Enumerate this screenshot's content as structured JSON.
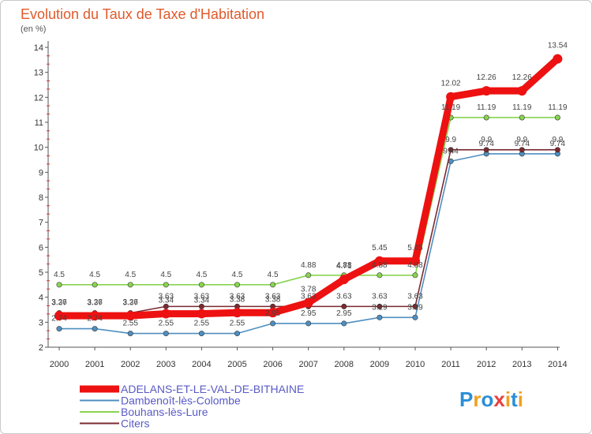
{
  "chart_data": {
    "type": "line",
    "title": "Evolution du Taux de Taxe d'Habitation",
    "subtitle": "(en %)",
    "x": [
      "2000",
      "2001",
      "2002",
      "2003",
      "2004",
      "2005",
      "2006",
      "2007",
      "2008",
      "2009",
      "2010",
      "2011",
      "2012",
      "2013",
      "2014"
    ],
    "ylim": [
      2,
      14
    ],
    "yticks": [
      2,
      3,
      4,
      5,
      6,
      7,
      8,
      9,
      10,
      11,
      12,
      13,
      14
    ],
    "grid": false,
    "legend_position": "bottom-left",
    "series": [
      {
        "name": "ADELANS-ET-LE-VAL-DE-BITHAINE",
        "color": "#ee1111",
        "values": [
          3.26,
          3.26,
          3.26,
          3.34,
          3.34,
          3.38,
          3.38,
          3.78,
          4.71,
          5.45,
          5.45,
          12.02,
          12.26,
          12.26,
          13.54
        ],
        "labels": [
          "3.26",
          "3.26",
          "3.26",
          "3.34",
          "3.34",
          "3.38",
          "3.38",
          "3.78",
          "4.71",
          "5.45",
          "5.45",
          "12.02",
          "12.26",
          "12.26",
          "13.54"
        ]
      },
      {
        "name": "Dambenoît-lès-Colombe",
        "color": "#4f8fc0",
        "values": [
          2.74,
          2.74,
          2.55,
          2.55,
          2.55,
          2.55,
          2.95,
          2.95,
          2.95,
          3.19,
          3.19,
          9.44,
          9.74,
          9.74,
          9.74
        ],
        "labels": [
          "2.74",
          "2.74",
          "2.55",
          "2.55",
          "2.55",
          "2.55",
          "2.95",
          "2.95",
          "2.95",
          "3.19",
          "3.19",
          "9.44",
          "9.74",
          "9.74",
          "9.74"
        ]
      },
      {
        "name": "Bouhans-lès-Lure",
        "color": "#88d450",
        "values": [
          4.5,
          4.5,
          4.5,
          4.5,
          4.5,
          4.5,
          4.5,
          4.88,
          4.88,
          4.88,
          4.88,
          11.19,
          11.19,
          11.19,
          11.19
        ],
        "labels": [
          "4.5",
          "4.5",
          "4.5",
          "4.5",
          "4.5",
          "4.5",
          "4.5",
          "4.88",
          "4.88",
          "4.88",
          "4.88",
          "11.19",
          "11.19",
          "11.19",
          "11.19"
        ]
      },
      {
        "name": "Citers",
        "color": "#7a2a30",
        "values": [
          3.37,
          3.37,
          3.37,
          3.63,
          3.63,
          3.63,
          3.63,
          3.63,
          3.63,
          3.63,
          3.63,
          9.9,
          9.9,
          9.9,
          9.9
        ],
        "labels": [
          "3.37",
          "3.37",
          "3.37",
          "3.63",
          "3.63",
          "3.63",
          "3.63",
          "3.63",
          "3.63",
          "3.63",
          "3.63",
          "9.9",
          "9.9",
          "9.9",
          "9.9"
        ]
      }
    ]
  },
  "logo": {
    "letters": [
      "P",
      "r",
      "o",
      "x",
      "i",
      "t",
      "i"
    ],
    "colors": [
      "#2a8fd8",
      "#f0a020",
      "#2a8fd8",
      "#e84040",
      "#f0a020",
      "#2a8fd8",
      "#f0a020"
    ]
  }
}
